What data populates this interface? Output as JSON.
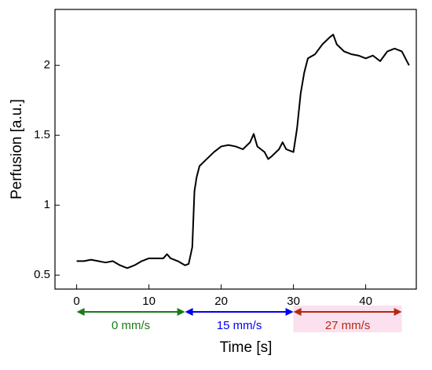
{
  "chart_data": {
    "type": "line",
    "xlabel": "Time [s]",
    "ylabel": "Perfusion [a.u.]",
    "x": [
      0,
      1,
      2,
      3,
      4,
      5,
      6,
      7,
      8,
      9,
      10,
      11,
      12,
      12.5,
      13,
      14,
      15,
      15.5,
      16,
      16.3,
      16.6,
      17,
      18,
      19,
      20,
      21,
      22,
      23,
      24,
      24.5,
      25,
      25.5,
      26,
      26.5,
      27,
      28,
      28.5,
      29,
      30,
      30.5,
      31,
      31.5,
      32,
      33,
      34,
      35,
      35.5,
      36,
      37,
      38,
      39,
      40,
      41,
      42,
      43,
      44,
      45,
      45.5,
      46
    ],
    "series": [
      {
        "name": "Perfusion",
        "color": "#000000",
        "values": [
          0.6,
          0.6,
          0.61,
          0.6,
          0.59,
          0.6,
          0.57,
          0.55,
          0.57,
          0.6,
          0.62,
          0.62,
          0.62,
          0.65,
          0.62,
          0.6,
          0.57,
          0.58,
          0.7,
          1.1,
          1.2,
          1.28,
          1.33,
          1.38,
          1.42,
          1.43,
          1.42,
          1.4,
          1.45,
          1.51,
          1.42,
          1.4,
          1.38,
          1.33,
          1.35,
          1.4,
          1.45,
          1.4,
          1.38,
          1.55,
          1.8,
          1.95,
          2.05,
          2.08,
          2.15,
          2.2,
          2.22,
          2.15,
          2.1,
          2.08,
          2.07,
          2.05,
          2.07,
          2.03,
          2.1,
          2.12,
          2.1,
          2.05,
          2.0
        ]
      }
    ],
    "xlim": [
      -3,
      47
    ],
    "xticks": [
      0,
      10,
      20,
      30,
      40
    ],
    "ylim": [
      0.4,
      2.4
    ],
    "yticks": [
      0.5,
      1,
      1.5,
      2
    ],
    "annotations": [
      {
        "label": "0 mm/s",
        "start": 0,
        "end": 15,
        "color": "#1a7a1a"
      },
      {
        "label": "15 mm/s",
        "start": 15,
        "end": 30,
        "color": "#0000ee"
      },
      {
        "label": "27 mm/s",
        "start": 30,
        "end": 45,
        "color": "#b22a10"
      }
    ]
  }
}
